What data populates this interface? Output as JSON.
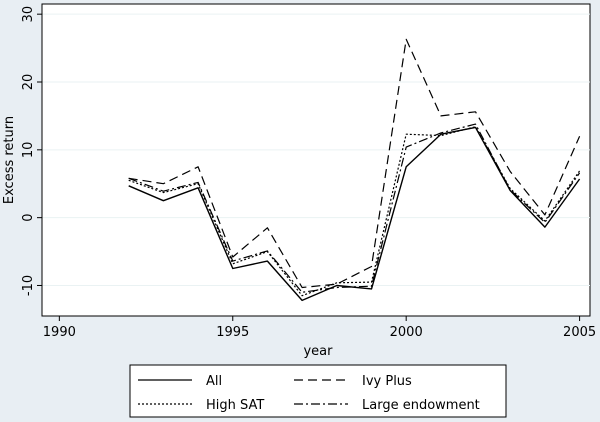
{
  "chart_data": {
    "type": "line",
    "title": "",
    "xlabel": "year",
    "ylabel": "Excess return",
    "xlim": [
      1989.5,
      2005.3
    ],
    "ylim": [
      -14.5,
      31.5
    ],
    "x_ticks": [
      1990,
      1995,
      2000,
      2005
    ],
    "y_ticks": [
      -10,
      0,
      10,
      20,
      30
    ],
    "grid": "horizontal",
    "legend_position": "bottom",
    "x": [
      1992,
      1993,
      1994,
      1995,
      1996,
      1997,
      1998,
      1999,
      2000,
      2001,
      2002,
      2003,
      2004,
      2005
    ],
    "series": [
      {
        "name": "All",
        "dash": "solid",
        "values": [
          4.7,
          2.5,
          4.4,
          -7.5,
          -6.4,
          -12.2,
          -10.0,
          -10.5,
          7.5,
          12.3,
          13.3,
          4.0,
          -1.4,
          5.7
        ]
      },
      {
        "name": "Ivy Plus",
        "dash": "dash",
        "values": [
          5.8,
          5.0,
          7.5,
          -5.8,
          -1.5,
          -10.3,
          -9.8,
          -7.2,
          26.3,
          15.0,
          15.6,
          6.8,
          0.4,
          12.0
        ]
      },
      {
        "name": "High SAT",
        "dash": "dot",
        "values": [
          5.5,
          3.7,
          5.0,
          -6.8,
          -5.0,
          -11.5,
          -9.6,
          -9.5,
          12.3,
          12.1,
          13.4,
          4.3,
          -0.5,
          6.9
        ]
      },
      {
        "name": "Large endowment",
        "dash": "dashdot",
        "values": [
          5.8,
          3.9,
          5.2,
          -6.4,
          -4.9,
          -11.0,
          -10.3,
          -10.1,
          10.4,
          12.5,
          13.8,
          4.1,
          -0.7,
          6.6
        ]
      }
    ]
  }
}
